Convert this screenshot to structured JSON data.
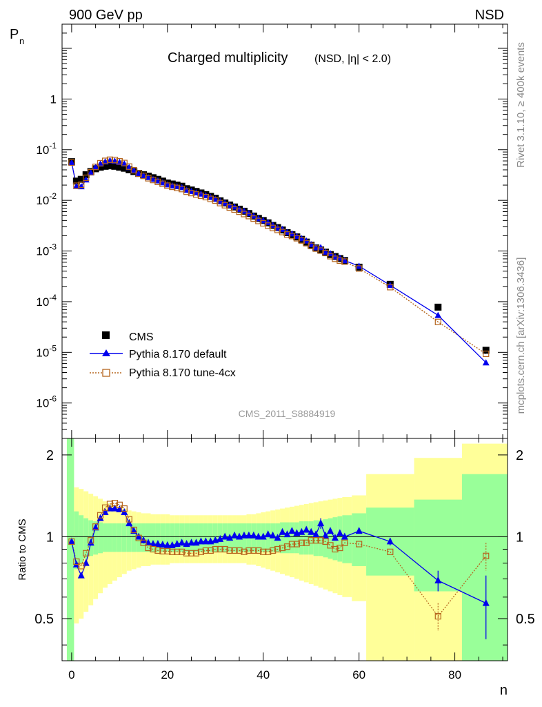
{
  "header": {
    "left": "900 GeV pp",
    "right": "NSD"
  },
  "side": {
    "upper": "Rivet 3.1.10, ≥ 400k events",
    "lower": "mcplots.cern.ch [arXiv:1306.3436]"
  },
  "chart_data": {
    "type": "scatter",
    "title": "Charged multiplicity",
    "title_suffix": "(NSD, |η| < 2.0)",
    "analysis_tag": "CMS_2011_S8884919",
    "xlabel": "n",
    "ylabel": "P",
    "ylabel_sub": "n",
    "ratio_ylabel": "Ratio to CMS",
    "xlim": [
      -2,
      91
    ],
    "ylim": [
      2e-07,
      30
    ],
    "ratio_ylim": [
      0.35,
      2.3
    ],
    "yscale": "log",
    "x_ticks": [
      "0",
      "20",
      "40",
      "60",
      "80"
    ],
    "y_ticks": [
      {
        "base": "10",
        "exp": "-6"
      },
      {
        "base": "10",
        "exp": "-5"
      },
      {
        "base": "10",
        "exp": "-4"
      },
      {
        "base": "10",
        "exp": "-3"
      },
      {
        "base": "10",
        "exp": "-2"
      },
      {
        "base": "10",
        "exp": "-1"
      },
      {
        "base": "1",
        "exp": ""
      }
    ],
    "ratio_ticks": [
      "0.5",
      "1",
      "2"
    ],
    "legend": {
      "position": "bottom-left",
      "entries": [
        "CMS",
        "Pythia 8.170 default",
        "Pythia 8.170 tune-4cx"
      ]
    },
    "colors": {
      "data": "#000000",
      "default": "#0000ee",
      "tune": "#b5651d",
      "band_inner": "#99ff99",
      "band_outer": "#ffff99"
    },
    "cms": {
      "x": [
        0,
        1,
        2,
        3,
        4,
        5,
        6,
        7,
        8,
        9,
        10,
        11,
        12,
        13,
        14,
        15,
        16,
        17,
        18,
        19,
        20,
        21,
        22,
        23,
        24,
        25,
        26,
        27,
        28,
        29,
        30,
        31,
        32,
        33,
        34,
        35,
        36,
        37,
        38,
        39,
        40,
        41,
        42,
        43,
        44,
        45,
        46,
        47,
        48,
        49,
        50,
        51,
        52,
        53,
        54,
        55,
        56,
        57,
        60,
        66.5,
        76.5,
        86.5
      ],
      "y": [
        0.058,
        0.024,
        0.026,
        0.032,
        0.037,
        0.042,
        0.045,
        0.047,
        0.048,
        0.047,
        0.045,
        0.043,
        0.04,
        0.037,
        0.034,
        0.032,
        0.03,
        0.028,
        0.026,
        0.024,
        0.022,
        0.021,
        0.02,
        0.019,
        0.017,
        0.016,
        0.015,
        0.014,
        0.013,
        0.012,
        0.011,
        0.0098,
        0.0089,
        0.0081,
        0.0074,
        0.0067,
        0.0061,
        0.0055,
        0.0049,
        0.0044,
        0.004,
        0.0036,
        0.0032,
        0.0029,
        0.0026,
        0.0023,
        0.0021,
        0.0019,
        0.0017,
        0.0015,
        0.0013,
        0.00115,
        0.00105,
        0.00095,
        0.00085,
        0.00078,
        0.00071,
        0.00065,
        0.00048,
        0.00022,
        7.8e-05,
        1.1e-05
      ]
    },
    "default_ratio": [
      0.96,
      0.79,
      0.72,
      0.8,
      0.95,
      1.08,
      1.17,
      1.23,
      1.27,
      1.27,
      1.26,
      1.23,
      1.12,
      1.05,
      1.0,
      0.97,
      0.95,
      0.94,
      0.94,
      0.935,
      0.93,
      0.93,
      0.94,
      0.95,
      0.94,
      0.95,
      0.95,
      0.96,
      0.96,
      0.96,
      0.97,
      0.98,
      1.0,
      0.99,
      1.01,
      1.0,
      1.01,
      1.01,
      1.01,
      1.0,
      1.0,
      1.02,
      1.01,
      0.99,
      1.04,
      1.02,
      1.05,
      1.03,
      1.04,
      1.06,
      1.04,
      1.02,
      1.12,
      1.01,
      1.05,
      0.99,
      1.03,
      1.0,
      1.05,
      0.96,
      0.69,
      0.57
    ],
    "tune_ratio": [
      0.96,
      0.81,
      0.78,
      0.87,
      0.97,
      1.09,
      1.2,
      1.28,
      1.32,
      1.33,
      1.31,
      1.27,
      1.16,
      1.06,
      0.99,
      0.95,
      0.91,
      0.9,
      0.89,
      0.885,
      0.885,
      0.88,
      0.88,
      0.88,
      0.87,
      0.87,
      0.87,
      0.88,
      0.89,
      0.89,
      0.9,
      0.9,
      0.9,
      0.89,
      0.89,
      0.89,
      0.88,
      0.89,
      0.89,
      0.89,
      0.88,
      0.88,
      0.89,
      0.9,
      0.91,
      0.92,
      0.94,
      0.94,
      0.95,
      0.95,
      0.97,
      0.97,
      0.97,
      0.96,
      0.93,
      0.9,
      0.91,
      0.95,
      0.94,
      0.88,
      0.51,
      0.85
    ],
    "band_edges": [
      -1,
      0.5,
      1.5,
      2.5,
      3.5,
      4.5,
      5.5,
      6.5,
      7.5,
      8.5,
      9.5,
      10.5,
      11.5,
      12.5,
      13.5,
      14.5,
      15.5,
      16.5,
      17.5,
      18.5,
      19.5,
      20.5,
      21.5,
      22.5,
      23.5,
      24.5,
      25.5,
      26.5,
      27.5,
      28.5,
      29.5,
      30.5,
      31.5,
      32.5,
      33.5,
      34.5,
      35.5,
      36.5,
      37.5,
      38.5,
      39.5,
      40.5,
      41.5,
      42.5,
      43.5,
      44.5,
      45.5,
      46.5,
      47.5,
      48.5,
      49.5,
      50.5,
      51.5,
      52.5,
      53.5,
      54.5,
      55.5,
      56.5,
      58.5,
      61.5,
      71.5,
      81.5,
      91.5
    ],
    "band_inner_err": [
      1.3,
      0.24,
      0.2,
      0.17,
      0.15,
      0.14,
      0.13,
      0.12,
      0.12,
      0.12,
      0.12,
      0.12,
      0.12,
      0.12,
      0.12,
      0.12,
      0.12,
      0.12,
      0.12,
      0.12,
      0.12,
      0.12,
      0.12,
      0.12,
      0.12,
      0.12,
      0.12,
      0.12,
      0.12,
      0.12,
      0.12,
      0.12,
      0.12,
      0.12,
      0.12,
      0.12,
      0.12,
      0.12,
      0.12,
      0.12,
      0.12,
      0.12,
      0.12,
      0.12,
      0.13,
      0.13,
      0.13,
      0.13,
      0.14,
      0.14,
      0.14,
      0.15,
      0.15,
      0.16,
      0.17,
      0.18,
      0.19,
      0.2,
      0.22,
      0.28,
      0.37,
      0.7
    ],
    "band_outer_err": [
      1.4,
      0.52,
      0.5,
      0.47,
      0.44,
      0.41,
      0.38,
      0.35,
      0.33,
      0.31,
      0.29,
      0.27,
      0.25,
      0.24,
      0.23,
      0.22,
      0.22,
      0.21,
      0.21,
      0.21,
      0.21,
      0.2,
      0.2,
      0.2,
      0.2,
      0.2,
      0.2,
      0.2,
      0.2,
      0.2,
      0.2,
      0.2,
      0.2,
      0.2,
      0.2,
      0.2,
      0.2,
      0.21,
      0.21,
      0.22,
      0.23,
      0.24,
      0.25,
      0.26,
      0.27,
      0.28,
      0.29,
      0.3,
      0.31,
      0.32,
      0.33,
      0.34,
      0.35,
      0.36,
      0.37,
      0.38,
      0.39,
      0.4,
      0.42,
      0.7,
      0.95,
      1.2
    ],
    "default_err": [
      {
        "n": 52,
        "err": 0.05
      },
      {
        "n": 66.5,
        "err": 0.03
      },
      {
        "n": 76.5,
        "err": 0.06
      },
      {
        "n": 86.5,
        "err": 0.15
      }
    ],
    "tune_err": [
      {
        "n": 76.5,
        "err": 0.06
      },
      {
        "n": 86.5,
        "err": 0.1
      }
    ]
  }
}
